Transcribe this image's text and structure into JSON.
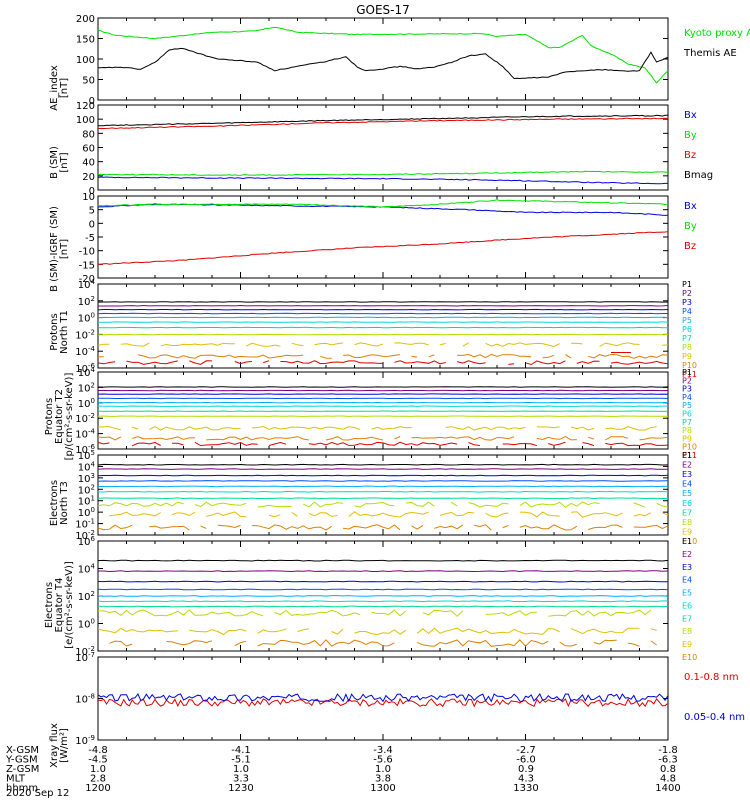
{
  "title": "GOES-17",
  "x_ticks": [
    "1200",
    "1230",
    "1300",
    "1330",
    "1400"
  ],
  "footer": {
    "rows": [
      {
        "label": "X-GSM",
        "values": [
          "-4.8",
          "-4.1",
          "-3.4",
          "-2.7",
          "-1.8"
        ]
      },
      {
        "label": "Y-GSM",
        "values": [
          "-4.5",
          "-5.1",
          "-5.6",
          "-6.0",
          "-6.3"
        ]
      },
      {
        "label": "Z-GSM",
        "values": [
          "1.0",
          "1.0",
          "1.0",
          "0.9",
          "0.8"
        ]
      },
      {
        "label": "MLT",
        "values": [
          "2.8",
          "3.3",
          "3.8",
          "4.3",
          "4.8"
        ]
      },
      {
        "label": "hhmm",
        "values": [
          "1200",
          "1230",
          "1300",
          "1330",
          "1400"
        ]
      }
    ],
    "date": "2020 Sep 12"
  },
  "colors": {
    "black": "#000000",
    "red": "#e00000",
    "green": "#00e000",
    "blue": "#0000e0",
    "P": [
      "#000000",
      "#800080",
      "#0000e0",
      "#0050ff",
      "#00b0ff",
      "#00d8d8",
      "#00dc90",
      "#b0e000",
      "#e0c000",
      "#e08000",
      "#e00000",
      "#c00000"
    ]
  },
  "chart_data": [
    {
      "type": "line",
      "ylabel": [
        "AE_index",
        "[nT]"
      ],
      "y_ticks": [
        "200",
        "150",
        "100",
        "50",
        "0"
      ],
      "ylim": [
        0,
        200
      ],
      "x": [
        1200,
        1400
      ],
      "series": [
        {
          "name": "Kyoto proxy AE",
          "color": "#00e000",
          "points": [
            [
              1200,
              170
            ],
            [
              1206,
              158
            ],
            [
              1220,
              150
            ],
            [
              1240,
              165
            ],
            [
              1255,
              168
            ],
            [
              1262,
              178
            ],
            [
              1270,
              165
            ],
            [
              1290,
              160
            ],
            [
              1335,
              162
            ],
            [
              1340,
              155
            ],
            [
              1350,
              160
            ],
            [
              1358,
              128
            ],
            [
              1362,
              128
            ],
            [
              1366,
              143
            ],
            [
              1370,
              158
            ],
            [
              1373,
              132
            ],
            [
              1380,
              112
            ],
            [
              1386,
              88
            ],
            [
              1392,
              78
            ],
            [
              1396,
              42
            ],
            [
              1400,
              72
            ]
          ]
        },
        {
          "name": "Themis AE",
          "color": "#000000",
          "points": [
            [
              1200,
              78
            ],
            [
              1208,
              80
            ],
            [
              1215,
              75
            ],
            [
              1220,
              92
            ],
            [
              1225,
              122
            ],
            [
              1230,
              126
            ],
            [
              1236,
              112
            ],
            [
              1242,
              100
            ],
            [
              1250,
              96
            ],
            [
              1256,
              92
            ],
            [
              1262,
              72
            ],
            [
              1270,
              82
            ],
            [
              1280,
              94
            ],
            [
              1287,
              106
            ],
            [
              1291,
              80
            ],
            [
              1294,
              72
            ],
            [
              1300,
              76
            ],
            [
              1306,
              82
            ],
            [
              1312,
              76
            ],
            [
              1318,
              80
            ],
            [
              1324,
              92
            ],
            [
              1330,
              108
            ],
            [
              1336,
              112
            ],
            [
              1342,
              82
            ],
            [
              1346,
              52
            ],
            [
              1352,
              54
            ],
            [
              1358,
              56
            ],
            [
              1364,
              68
            ],
            [
              1370,
              72
            ],
            [
              1378,
              74
            ],
            [
              1386,
              70
            ],
            [
              1390,
              72
            ],
            [
              1394,
              116
            ],
            [
              1396,
              92
            ],
            [
              1400,
              104
            ]
          ]
        }
      ]
    },
    {
      "type": "line",
      "ylabel": [
        "B (SM)",
        "[nT]"
      ],
      "y_ticks": [
        "120",
        "100",
        "80",
        "60",
        "40",
        "20",
        "0"
      ],
      "ylim": [
        0,
        120
      ],
      "series": [
        {
          "name": "Bx",
          "color": "#0000e0",
          "points": [
            [
              1200,
              18
            ],
            [
              1240,
              17
            ],
            [
              1300,
              16
            ],
            [
              1340,
              14
            ],
            [
              1380,
              10
            ],
            [
              1400,
              9
            ]
          ]
        },
        {
          "name": "By",
          "color": "#00e000",
          "points": [
            [
              1200,
              22
            ],
            [
              1250,
              21
            ],
            [
              1300,
              22
            ],
            [
              1340,
              24
            ],
            [
              1370,
              26
            ],
            [
              1400,
              25
            ]
          ]
        },
        {
          "name": "Bz",
          "color": "#e00000",
          "points": [
            [
              1200,
              87
            ],
            [
              1240,
              90
            ],
            [
              1280,
              95
            ],
            [
              1320,
              98
            ],
            [
              1360,
              100
            ],
            [
              1400,
              101
            ]
          ]
        },
        {
          "name": "Bmag",
          "color": "#000000",
          "points": [
            [
              1200,
              91
            ],
            [
              1240,
              94
            ],
            [
              1280,
              98
            ],
            [
              1320,
              101
            ],
            [
              1360,
              104
            ],
            [
              1400,
              105
            ]
          ]
        }
      ]
    },
    {
      "type": "line",
      "ylabel": [
        "B (SM)-IGRF (SM)",
        "[nT]"
      ],
      "y_ticks": [
        "10",
        "5",
        "0",
        "-5",
        "-10",
        "-15",
        "-20"
      ],
      "ylim": [
        -20,
        10
      ],
      "series": [
        {
          "name": "Bx",
          "color": "#0000e0",
          "points": [
            [
              1200,
              6
            ],
            [
              1220,
              7
            ],
            [
              1260,
              6.5
            ],
            [
              1300,
              6
            ],
            [
              1330,
              5
            ],
            [
              1350,
              4
            ],
            [
              1380,
              4
            ],
            [
              1400,
              3
            ]
          ]
        },
        {
          "name": "By",
          "color": "#00e000",
          "points": [
            [
              1200,
              6.5
            ],
            [
              1230,
              7
            ],
            [
              1270,
              7
            ],
            [
              1300,
              6
            ],
            [
              1320,
              7
            ],
            [
              1340,
              8.5
            ],
            [
              1360,
              8
            ],
            [
              1380,
              7.5
            ],
            [
              1400,
              7
            ]
          ]
        },
        {
          "name": "Bz",
          "color": "#e00000",
          "points": [
            [
              1200,
              -15
            ],
            [
              1230,
              -13.5
            ],
            [
              1260,
              -11
            ],
            [
              1290,
              -9
            ],
            [
              1320,
              -7.5
            ],
            [
              1350,
              -5.5
            ],
            [
              1380,
              -4
            ],
            [
              1400,
              -3
            ]
          ]
        }
      ]
    },
    {
      "type": "line",
      "log": true,
      "ylabel": [
        "Protons",
        "North T1"
      ],
      "y_ticks": [
        "10^4",
        "10^2",
        "10^0",
        "10^-2",
        "10^-4",
        "10^-6"
      ],
      "ylim": [
        -6.5,
        4.3
      ],
      "channels": [
        "P1",
        "P2",
        "P3",
        "P4",
        "P5",
        "P6",
        "P7",
        "P8",
        "P9",
        "P10",
        "P11"
      ],
      "levels": [
        2.0,
        1.5,
        1.0,
        0.5,
        0.0,
        -0.6,
        -1.3,
        -2.2,
        -3.5,
        -5.0,
        -5.8
      ],
      "segments": [
        [
          1380,
          1387,
          -4.5
        ]
      ]
    },
    {
      "type": "line",
      "log": true,
      "ylabel": [
        "Protons",
        "Equator T2",
        "[p/(cm²-s-sr-keV)]"
      ],
      "y_ticks": [
        "10^4",
        "10^2",
        "10^0",
        "10^-2",
        "10^-4",
        "10^-6"
      ],
      "ylim": [
        -6.5,
        4.3
      ],
      "channels": [
        "P1",
        "P2",
        "P3",
        "P4",
        "P5",
        "P6",
        "P7",
        "P8",
        "P9",
        "P10",
        "P11"
      ],
      "levels": [
        2.2,
        1.7,
        1.2,
        0.6,
        0.0,
        -0.5,
        -1.2,
        -1.9,
        -3.6,
        -5.0,
        -5.8
      ]
    },
    {
      "type": "line",
      "log": true,
      "ylabel": [
        "Electrons",
        "North T3"
      ],
      "y_ticks": [
        "10^5",
        "10^4",
        "10^3",
        "10^2",
        "10^1",
        "10^0",
        "10^-1",
        "10^-2"
      ],
      "ylim": [
        -2.2,
        5.2
      ],
      "channels": [
        "E1",
        "E2",
        "E3",
        "E4",
        "E5",
        "E6",
        "E7",
        "E8",
        "E9",
        "E10"
      ],
      "levels": [
        4.3,
        3.9,
        3.3,
        2.8,
        2.3,
        1.8,
        1.2,
        0.6,
        -0.3,
        -1.5
      ]
    },
    {
      "type": "line",
      "log": true,
      "ylabel": [
        "Electrons",
        "Equator T4",
        "[e/(cm²-s-sr-keV)]"
      ],
      "y_ticks": [
        "10^6",
        "10^4",
        "10^2",
        "10^0",
        "10^-2"
      ],
      "ylim": [
        -2.2,
        6.2
      ],
      "channels": [
        "E1",
        "E2",
        "E3",
        "E4",
        "E5",
        "E6",
        "E7",
        "E8",
        "E9",
        "E10"
      ],
      "levels": [
        4.7,
        3.9,
        3.1,
        2.5,
        2.0,
        1.6,
        1.2,
        0.7,
        -0.7,
        -1.6
      ]
    },
    {
      "type": "line",
      "log": true,
      "ylabel": [
        "Xray flux",
        "[W/m²]"
      ],
      "y_ticks": [
        "10^-7",
        "10^-8",
        "10^-9"
      ],
      "ylim": [
        -9,
        -7
      ],
      "series": [
        {
          "name": "0.1-0.8 nm",
          "color": "#e00000",
          "level": -8.1
        },
        {
          "name": "0.05-0.4 nm",
          "color": "#0000e0",
          "level": -7.98
        }
      ]
    }
  ]
}
